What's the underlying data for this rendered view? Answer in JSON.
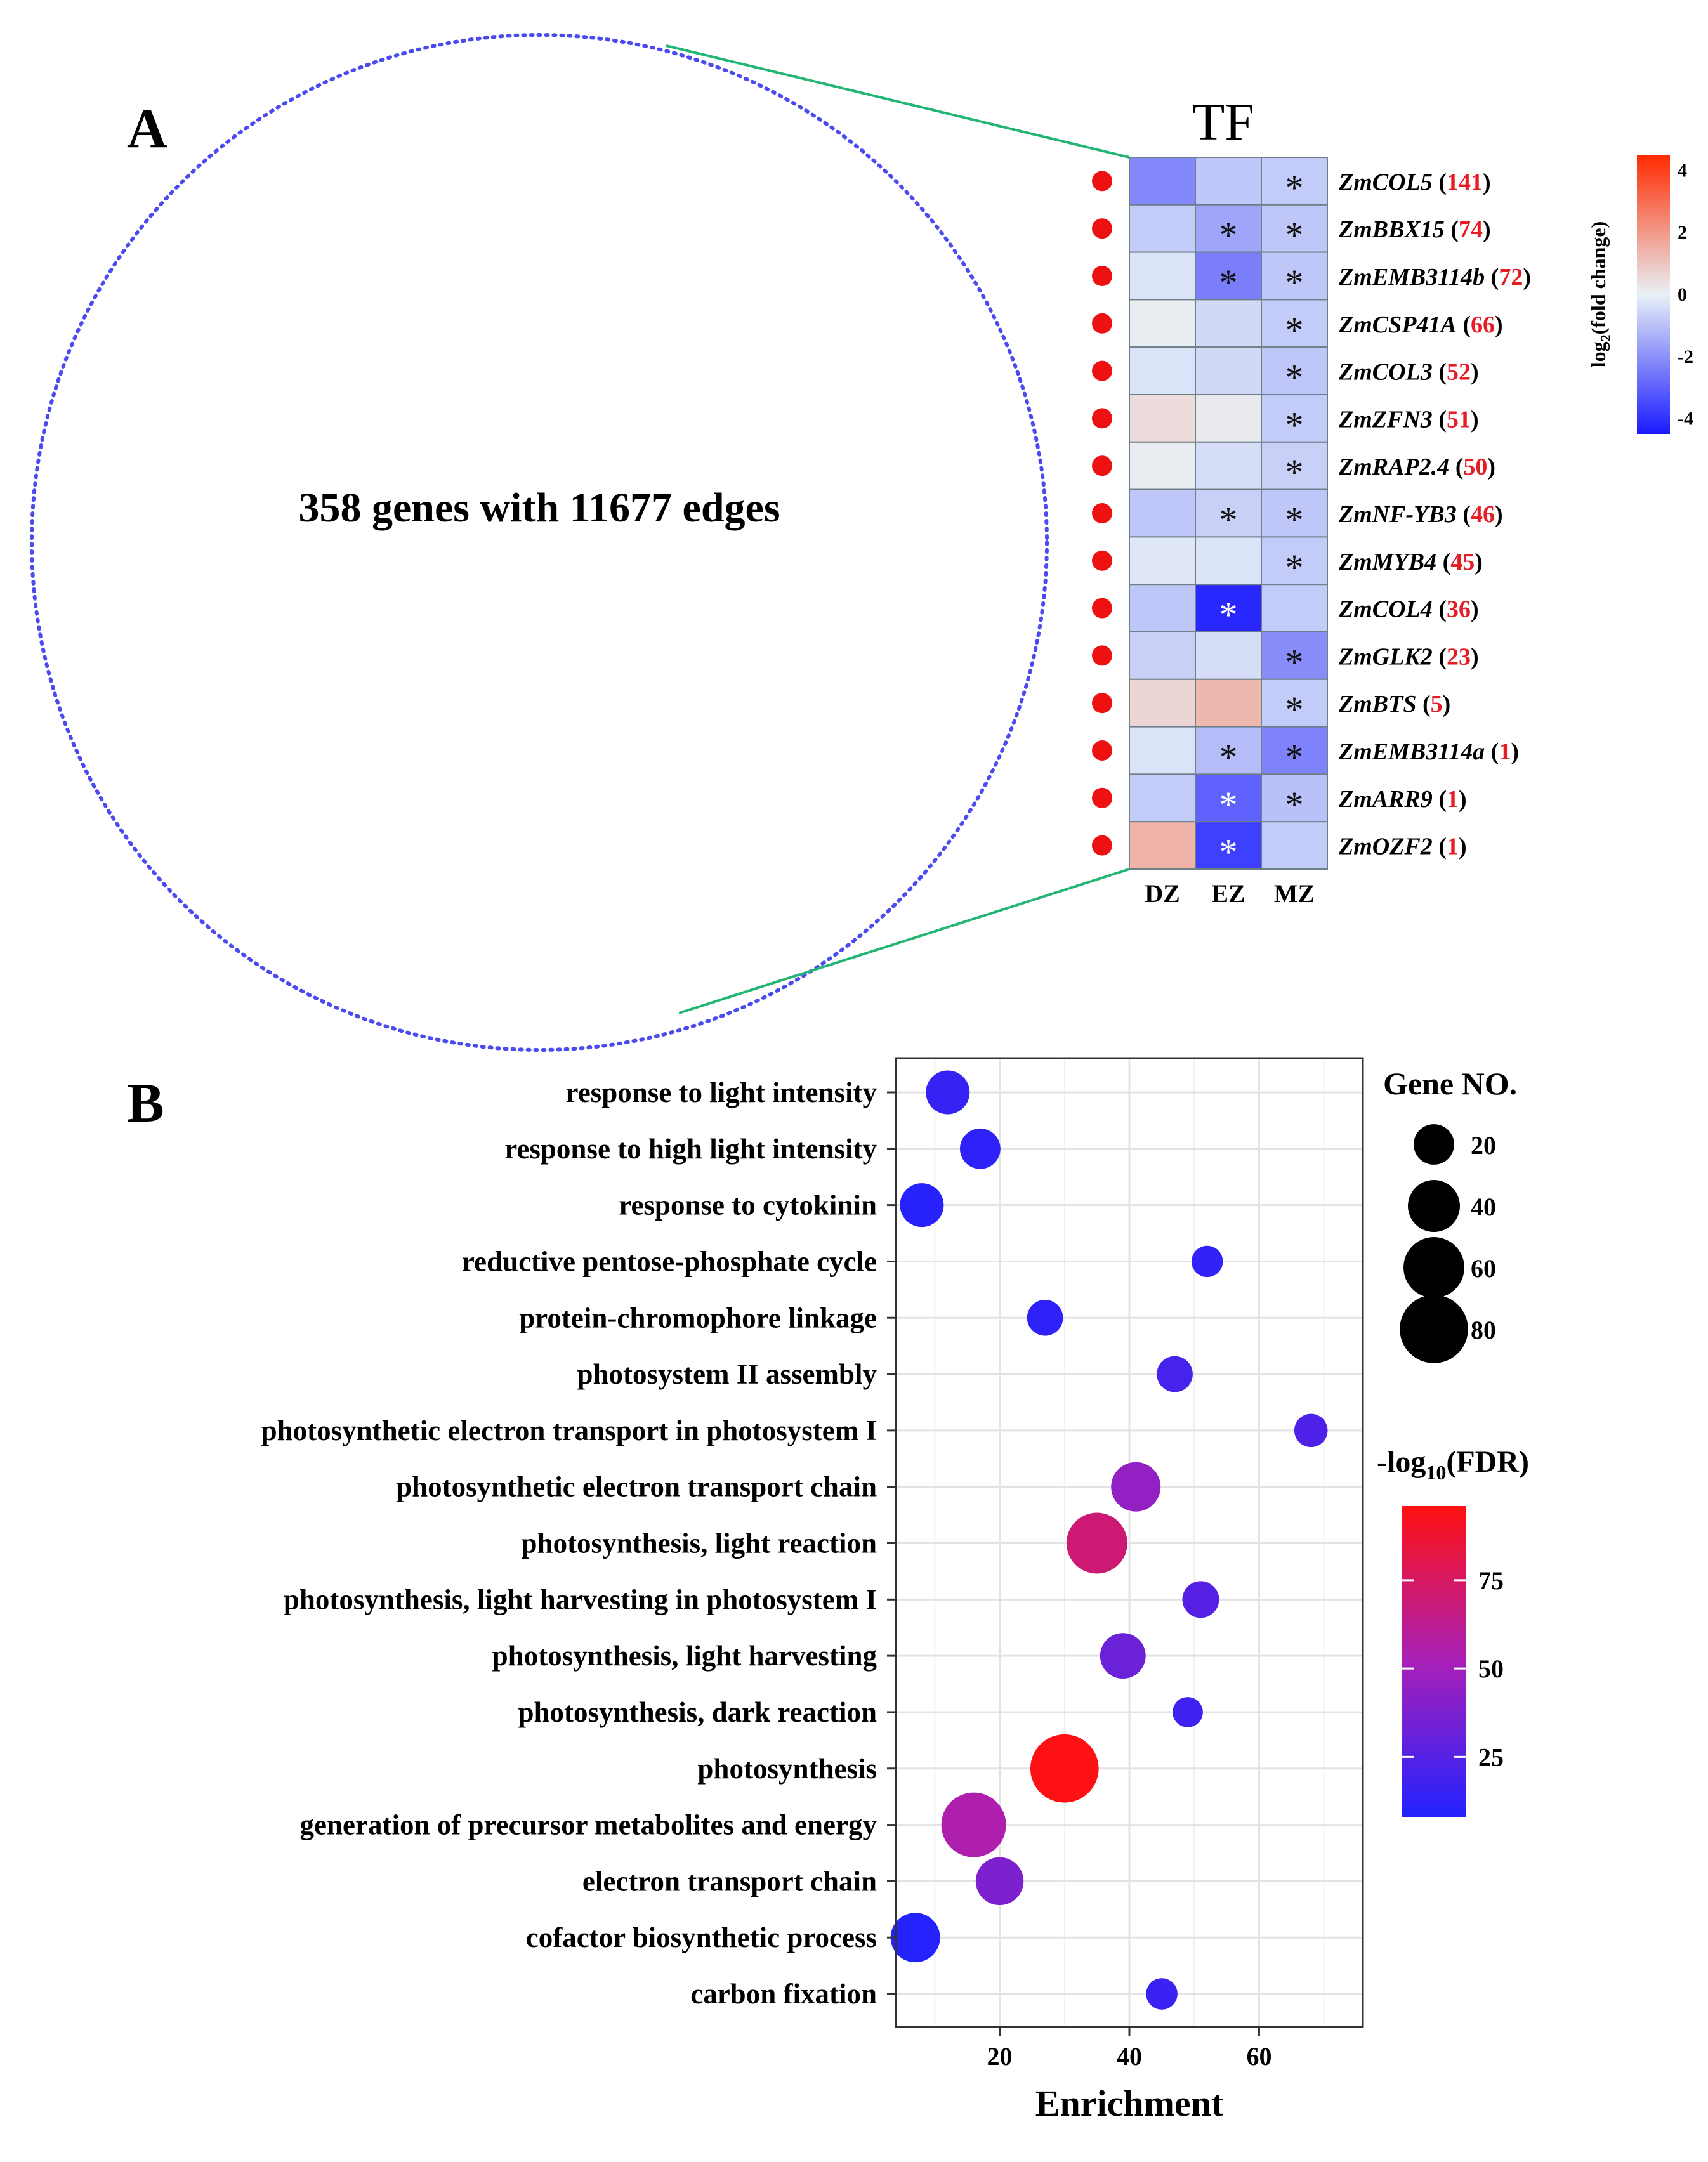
{
  "panelA": {
    "panel_label": "A",
    "network_label": "358 genes with 11677 edges",
    "network_node_count": 358,
    "network_edge_count": 11677,
    "network_color": "#4b4bf0",
    "connector_color": "#22b573",
    "heatmap_title": "TF",
    "marker_color": "#ee1111",
    "colorbar_title_parts": {
      "prefix": "log",
      "subscript": "2",
      "suffix": "(fold change)"
    },
    "colorbar_ticks": [
      "4",
      "2",
      "0",
      "-2",
      "-4"
    ]
  },
  "panelB": {
    "panel_label": "B",
    "size_legend_title": "Gene NO.",
    "size_legend_values": [
      "20",
      "40",
      "60",
      "80"
    ],
    "color_legend_title_parts": {
      "prefix": "-log",
      "subscript": "10",
      "suffix": "(FDR)"
    },
    "color_legend_ticks": [
      "75",
      "50",
      "25"
    ]
  },
  "chart_data": [
    {
      "type": "heatmap",
      "title": "TF",
      "columns": [
        "DZ",
        "EZ",
        "MZ"
      ],
      "rows": [
        {
          "gene": "ZmCOL5",
          "count": "141",
          "values": [
            -2.2,
            -0.9,
            -0.8
          ],
          "sig": [
            "",
            "",
            "black"
          ]
        },
        {
          "gene": "ZmBBX15",
          "count": "74",
          "values": [
            -0.8,
            -1.6,
            -0.9
          ],
          "sig": [
            "",
            "black",
            "black"
          ]
        },
        {
          "gene": "ZmEMB3114b",
          "count": "72",
          "values": [
            -0.3,
            -2.4,
            -0.9
          ],
          "sig": [
            "",
            "black",
            "black"
          ]
        },
        {
          "gene": "ZmCSP41A",
          "count": "66",
          "values": [
            0.1,
            -0.5,
            -0.8
          ],
          "sig": [
            "",
            "",
            "black"
          ]
        },
        {
          "gene": "ZmCOL3",
          "count": "52",
          "values": [
            -0.3,
            -0.5,
            -0.9
          ],
          "sig": [
            "",
            "",
            "black"
          ]
        },
        {
          "gene": "ZmZFN3",
          "count": "51",
          "values": [
            0.5,
            0.15,
            -0.8
          ],
          "sig": [
            "",
            "",
            "black"
          ]
        },
        {
          "gene": "ZmRAP2.4",
          "count": "50",
          "values": [
            0.1,
            -0.4,
            -0.7
          ],
          "sig": [
            "",
            "",
            "black"
          ]
        },
        {
          "gene": "ZmNF-YB3",
          "count": "46",
          "values": [
            -0.9,
            -0.7,
            -0.9
          ],
          "sig": [
            "",
            "black",
            "black"
          ]
        },
        {
          "gene": "ZmMYB4",
          "count": "45",
          "values": [
            -0.2,
            -0.3,
            -0.8
          ],
          "sig": [
            "",
            "",
            "black"
          ]
        },
        {
          "gene": "ZmCOL4",
          "count": "36",
          "values": [
            -0.9,
            -4.2,
            -0.8
          ],
          "sig": [
            "",
            "white",
            ""
          ]
        },
        {
          "gene": "ZmGLK2",
          "count": "23",
          "values": [
            -0.7,
            -0.4,
            -2.1
          ],
          "sig": [
            "",
            "",
            "black"
          ]
        },
        {
          "gene": "ZmBTS",
          "count": "5",
          "values": [
            0.6,
            1.3,
            -0.8
          ],
          "sig": [
            "",
            "",
            "black"
          ]
        },
        {
          "gene": "ZmEMB3114a",
          "count": "1",
          "values": [
            -0.3,
            -1.1,
            -2.3
          ],
          "sig": [
            "",
            "black",
            "black"
          ]
        },
        {
          "gene": "ZmARR9",
          "count": "1",
          "values": [
            -0.8,
            -3.0,
            -1.0
          ],
          "sig": [
            "",
            "white",
            "black"
          ]
        },
        {
          "gene": "ZmOZF2",
          "count": "1",
          "values": [
            1.4,
            -3.7,
            -0.8
          ],
          "sig": [
            "",
            "white",
            ""
          ]
        }
      ],
      "scale": {
        "min": -4.5,
        "max": 4.5,
        "colors": [
          "#1a1aff",
          "#e8f1f6",
          "#ff2a00"
        ]
      }
    },
    {
      "type": "scatter",
      "xlabel": "Enrichment",
      "xlim": [
        4,
        76
      ],
      "xticks": [
        20,
        40,
        60
      ],
      "size_label": "Gene NO.",
      "color_label": "-log10(FDR)",
      "color_range": [
        8,
        96
      ],
      "points": [
        {
          "term": "response to light intensity",
          "enrichment": 12,
          "gene_no": 25,
          "neg_log10_fdr": 15
        },
        {
          "term": "response to high light intensity",
          "enrichment": 17,
          "gene_no": 20,
          "neg_log10_fdr": 12
        },
        {
          "term": "response to cytokinin",
          "enrichment": 8,
          "gene_no": 25,
          "neg_log10_fdr": 10
        },
        {
          "term": "reductive pentose-phosphate cycle",
          "enrichment": 52,
          "gene_no": 9,
          "neg_log10_fdr": 13
        },
        {
          "term": "protein-chromophore linkage",
          "enrichment": 27,
          "gene_no": 14,
          "neg_log10_fdr": 12
        },
        {
          "term": "photosystem II assembly",
          "enrichment": 47,
          "gene_no": 14,
          "neg_log10_fdr": 20
        },
        {
          "term": "photosynthetic electron transport in photosystem I",
          "enrichment": 68,
          "gene_no": 11,
          "neg_log10_fdr": 22
        },
        {
          "term": "photosynthetic electron transport chain",
          "enrichment": 41,
          "gene_no": 35,
          "neg_log10_fdr": 45
        },
        {
          "term": "photosynthesis, light reaction",
          "enrichment": 35,
          "gene_no": 60,
          "neg_log10_fdr": 70
        },
        {
          "term": "photosynthesis, light harvesting in photosystem I",
          "enrichment": 51,
          "gene_no": 15,
          "neg_log10_fdr": 25
        },
        {
          "term": "photosynthesis, light harvesting",
          "enrichment": 39,
          "gene_no": 28,
          "neg_log10_fdr": 32
        },
        {
          "term": "photosynthesis, dark reaction",
          "enrichment": 49,
          "gene_no": 8,
          "neg_log10_fdr": 17
        },
        {
          "term": "photosynthesis",
          "enrichment": 30,
          "gene_no": 80,
          "neg_log10_fdr": 95
        },
        {
          "term": "generation of precursor metabolites and energy",
          "enrichment": 16,
          "gene_no": 70,
          "neg_log10_fdr": 55
        },
        {
          "term": "electron transport chain",
          "enrichment": 20,
          "gene_no": 32,
          "neg_log10_fdr": 38
        },
        {
          "term": "cofactor biosynthetic process",
          "enrichment": 7,
          "gene_no": 35,
          "neg_log10_fdr": 9
        },
        {
          "term": "carbon fixation",
          "enrichment": 45,
          "gene_no": 9,
          "neg_log10_fdr": 16
        }
      ]
    }
  ]
}
